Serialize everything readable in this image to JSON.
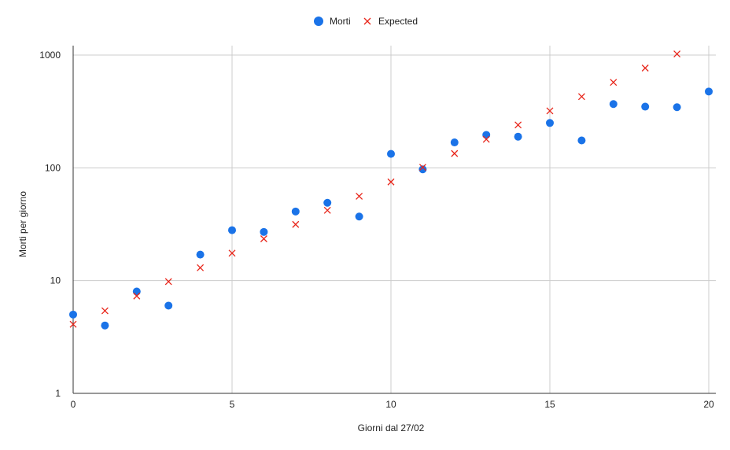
{
  "chart_data": {
    "type": "scatter",
    "xlabel": "Giorni dal 27/02",
    "ylabel": "Morti per giorno",
    "xlim": [
      0,
      20
    ],
    "ylim": [
      1,
      1000
    ],
    "y_scale": "log",
    "x_ticks": [
      "0",
      "5",
      "10",
      "15",
      "20"
    ],
    "y_ticks": [
      "1",
      "10",
      "100",
      "1000"
    ],
    "grid": true,
    "legend_position": "top-center",
    "series": [
      {
        "name": "Morti",
        "marker": "circle",
        "color": "#1a73e8",
        "x": [
          0,
          1,
          2,
          3,
          4,
          5,
          6,
          7,
          8,
          9,
          10,
          11,
          12,
          13,
          14,
          15,
          16,
          17,
          18,
          19,
          20
        ],
        "y": [
          5,
          4,
          8,
          6,
          17,
          28,
          27,
          41,
          49,
          37,
          133,
          97,
          168,
          196,
          189,
          250,
          175,
          368,
          349,
          345,
          475
        ]
      },
      {
        "name": "Expected",
        "marker": "x",
        "color": "#e8251a",
        "x": [
          0,
          1,
          2,
          3,
          4,
          5,
          6,
          7,
          8,
          9,
          10,
          11,
          12,
          13,
          14,
          15,
          16,
          17,
          18,
          19
        ],
        "y": [
          4.1,
          5.4,
          7.3,
          9.8,
          13,
          17.5,
          23.5,
          31.5,
          42,
          56,
          75,
          101,
          134,
          179,
          240,
          320,
          428,
          573,
          767,
          1024
        ]
      }
    ]
  }
}
